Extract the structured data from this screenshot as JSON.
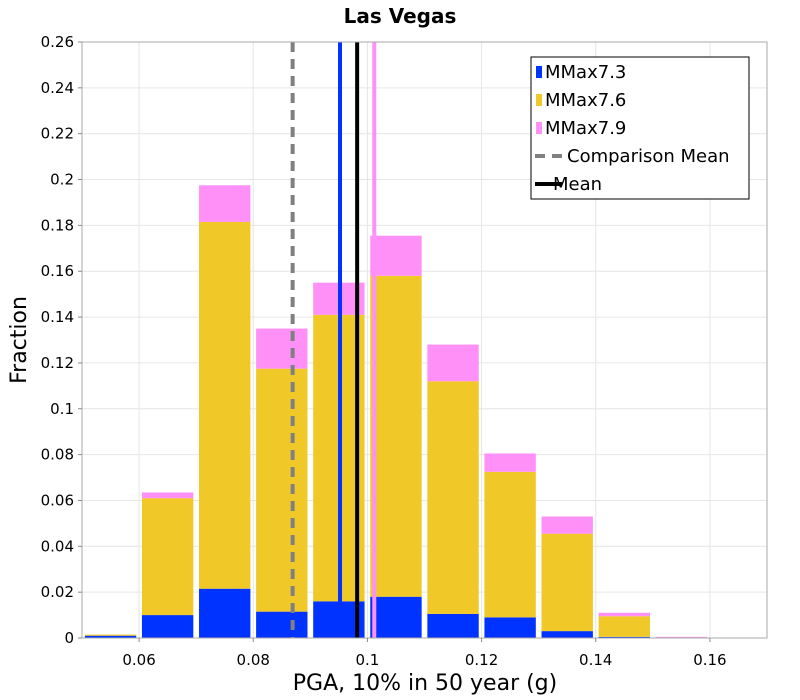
{
  "chart_data": {
    "type": "bar",
    "stacked": true,
    "title": "Las Vegas",
    "xlabel": "PGA, 10% in 50 year (g)",
    "ylabel": "Fraction",
    "xlim": [
      0.05,
      0.17
    ],
    "ylim": [
      0,
      0.26
    ],
    "xticks": [
      0.06,
      0.08,
      0.1,
      0.12,
      0.14,
      0.16
    ],
    "xtick_labels": [
      "0.06",
      "0.08",
      "0.1",
      "0.12",
      "0.14",
      "0.16"
    ],
    "yticks": [
      0,
      0.02,
      0.04,
      0.06,
      0.08,
      0.1,
      0.12,
      0.14,
      0.16,
      0.18,
      0.2,
      0.22,
      0.24,
      0.26
    ],
    "ytick_labels": [
      "0",
      "0.02",
      "0.04",
      "0.06",
      "0.08",
      "0.1",
      "0.12",
      "0.14",
      "0.16",
      "0.18",
      "0.2",
      "0.22",
      "0.24",
      "0.26"
    ],
    "bin_width": 0.01,
    "bins": [
      0.055,
      0.065,
      0.075,
      0.085,
      0.095,
      0.105,
      0.115,
      0.125,
      0.135,
      0.145,
      0.155
    ],
    "series": [
      {
        "name": "MMax7.3",
        "color": "#0033ff",
        "values": [
          0.001,
          0.01,
          0.0215,
          0.0115,
          0.016,
          0.018,
          0.0105,
          0.009,
          0.003,
          0.0005,
          0.0
        ]
      },
      {
        "name": "MMax7.6",
        "color": "#f0c828",
        "values": [
          0.0005,
          0.051,
          0.16,
          0.106,
          0.125,
          0.14,
          0.1015,
          0.0635,
          0.0425,
          0.009,
          0.0
        ]
      },
      {
        "name": "MMax7.9",
        "color": "#ff90f8",
        "values": [
          0.0,
          0.0025,
          0.016,
          0.0175,
          0.014,
          0.0175,
          0.016,
          0.008,
          0.0075,
          0.0015,
          0.0005
        ]
      }
    ],
    "vlines": [
      {
        "name": "MMax7.3 mean",
        "x": 0.0952,
        "color": "#0033ff",
        "style": "solid"
      },
      {
        "name": "MMax7.9 mean",
        "x": 0.1012,
        "color": "#ff90f8",
        "style": "solid"
      },
      {
        "name": "Comparison Mean",
        "x": 0.0869,
        "color": "#808080",
        "style": "dashed"
      },
      {
        "name": "Mean",
        "x": 0.0982,
        "color": "#000000",
        "style": "solid"
      }
    ],
    "legend_position": "top-right",
    "legend": [
      {
        "label": "MMax7.3",
        "color": "#0033ff",
        "kind": "patch"
      },
      {
        "label": "MMax7.6",
        "color": "#f0c828",
        "kind": "patch"
      },
      {
        "label": "MMax7.9",
        "color": "#ff90f8",
        "kind": "patch"
      },
      {
        "label": "Comparison Mean",
        "color": "#808080",
        "kind": "dashed"
      },
      {
        "label": "Mean",
        "color": "#000000",
        "kind": "solid"
      }
    ],
    "grid": true
  }
}
